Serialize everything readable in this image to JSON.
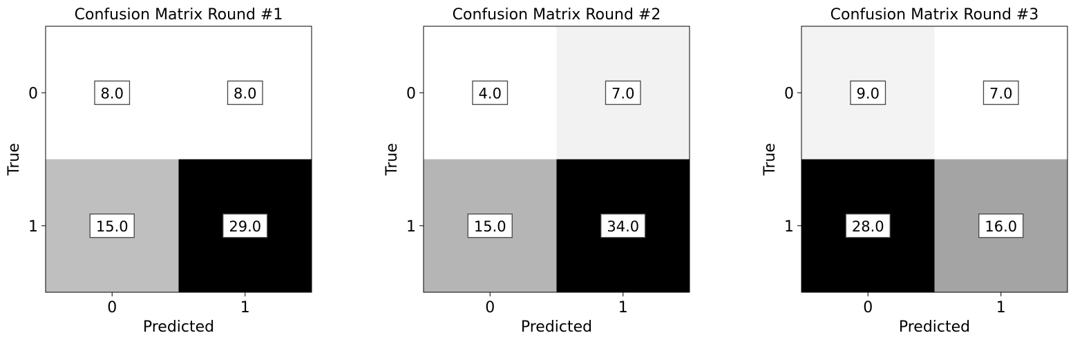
{
  "chart_data": [
    {
      "type": "heatmap",
      "title": "Confusion Matrix Round #1",
      "xlabel": "Predicted",
      "ylabel": "True",
      "x_categories": [
        "0",
        "1"
      ],
      "y_categories": [
        "0",
        "1"
      ],
      "values": [
        [
          8.0,
          8.0
        ],
        [
          15.0,
          29.0
        ]
      ],
      "value_labels": [
        [
          "8.0",
          "8.0"
        ],
        [
          "15.0",
          "29.0"
        ]
      ],
      "colormap": "Greys",
      "colorbar": false,
      "grid": false
    },
    {
      "type": "heatmap",
      "title": "Confusion Matrix Round #2",
      "xlabel": "Predicted",
      "ylabel": "True",
      "x_categories": [
        "0",
        "1"
      ],
      "y_categories": [
        "0",
        "1"
      ],
      "values": [
        [
          4.0,
          7.0
        ],
        [
          15.0,
          34.0
        ]
      ],
      "value_labels": [
        [
          "4.0",
          "7.0"
        ],
        [
          "15.0",
          "34.0"
        ]
      ],
      "colormap": "Greys",
      "colorbar": false,
      "grid": false
    },
    {
      "type": "heatmap",
      "title": "Confusion Matrix Round #3",
      "xlabel": "Predicted",
      "ylabel": "True",
      "x_categories": [
        "0",
        "1"
      ],
      "y_categories": [
        "0",
        "1"
      ],
      "values": [
        [
          9.0,
          7.0
        ],
        [
          28.0,
          16.0
        ]
      ],
      "value_labels": [
        [
          "9.0",
          "7.0"
        ],
        [
          "28.0",
          "16.0"
        ]
      ],
      "colormap": "Greys",
      "colorbar": false,
      "grid": false
    }
  ]
}
